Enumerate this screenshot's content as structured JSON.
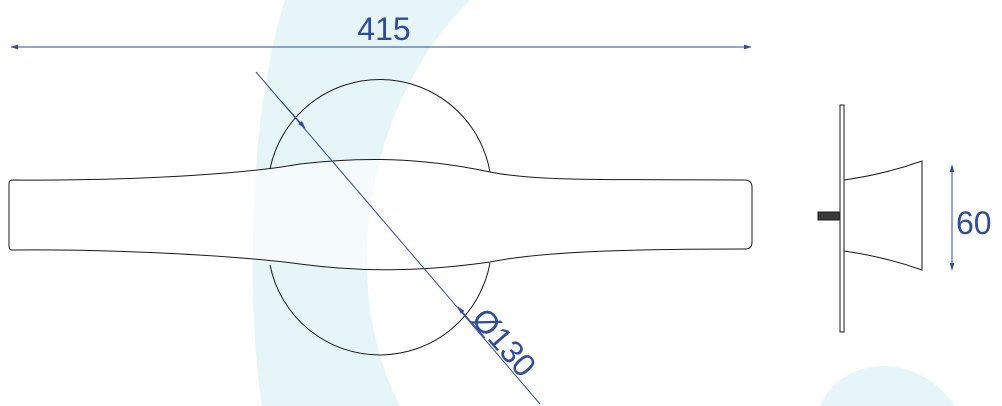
{
  "drawing": {
    "dimensions": {
      "overall_length": "415",
      "rose_diameter": "Ø130",
      "projection": "60"
    }
  },
  "colors": {
    "dimension_line": "#2f4b9c",
    "outline": "#1a1a1a",
    "watermark": "#e6f5f8"
  }
}
